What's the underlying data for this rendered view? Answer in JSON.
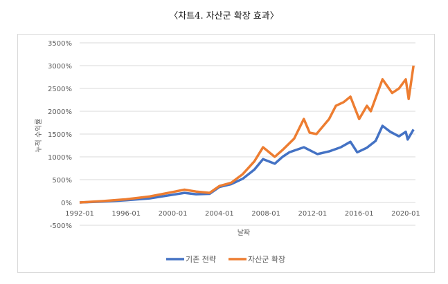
{
  "page_title": "〈차트4. 자산군 확장 효과〉",
  "chart_data": {
    "type": "line",
    "title": "",
    "xlabel": "날짜",
    "ylabel": "누적 수익률",
    "ylim": [
      -500,
      3500
    ],
    "yticks": [
      -500,
      0,
      500,
      1000,
      1500,
      2000,
      2500,
      3000,
      3500
    ],
    "ytick_labels": [
      "-500%",
      "0%",
      "500%",
      "1000%",
      "1500%",
      "2000%",
      "2500%",
      "3000%",
      "3500%"
    ],
    "xticks": [
      "1992-01",
      "1996-01",
      "2000-01",
      "2004-01",
      "2008-01",
      "2012-01",
      "2016-01",
      "2020-01"
    ],
    "xlim": [
      "1992-01",
      "2020-09"
    ],
    "grid": true,
    "legend": "bottom",
    "series": [
      {
        "name": "기존 전략",
        "color": "#4472C4",
        "points": [
          [
            "1992-01",
            0
          ],
          [
            "1994-01",
            20
          ],
          [
            "1996-01",
            50
          ],
          [
            "1998-01",
            90
          ],
          [
            "2000-01",
            170
          ],
          [
            "2001-01",
            210
          ],
          [
            "2002-01",
            180
          ],
          [
            "2003-03",
            190
          ],
          [
            "2004-01",
            340
          ],
          [
            "2005-01",
            400
          ],
          [
            "2006-01",
            520
          ],
          [
            "2007-01",
            720
          ],
          [
            "2007-10",
            950
          ],
          [
            "2008-10",
            850
          ],
          [
            "2009-06",
            1000
          ],
          [
            "2010-01",
            1100
          ],
          [
            "2011-04",
            1210
          ],
          [
            "2012-06",
            1060
          ],
          [
            "2013-06",
            1120
          ],
          [
            "2014-06",
            1210
          ],
          [
            "2015-04",
            1330
          ],
          [
            "2015-11",
            1100
          ],
          [
            "2016-09",
            1200
          ],
          [
            "2017-06",
            1350
          ],
          [
            "2018-01",
            1680
          ],
          [
            "2018-09",
            1550
          ],
          [
            "2019-06",
            1450
          ],
          [
            "2020-01",
            1550
          ],
          [
            "2020-03",
            1380
          ],
          [
            "2020-09",
            1600
          ]
        ]
      },
      {
        "name": "자산군 확장",
        "color": "#ED7D31",
        "points": [
          [
            "1992-01",
            0
          ],
          [
            "1994-01",
            30
          ],
          [
            "1996-01",
            70
          ],
          [
            "1998-01",
            130
          ],
          [
            "2000-01",
            230
          ],
          [
            "2001-01",
            280
          ],
          [
            "2002-01",
            240
          ],
          [
            "2003-03",
            210
          ],
          [
            "2004-01",
            360
          ],
          [
            "2005-01",
            430
          ],
          [
            "2006-01",
            620
          ],
          [
            "2007-01",
            900
          ],
          [
            "2007-10",
            1210
          ],
          [
            "2008-10",
            1000
          ],
          [
            "2009-06",
            1150
          ],
          [
            "2010-06",
            1400
          ],
          [
            "2011-04",
            1830
          ],
          [
            "2011-10",
            1530
          ],
          [
            "2012-05",
            1500
          ],
          [
            "2013-06",
            1830
          ],
          [
            "2014-01",
            2120
          ],
          [
            "2014-09",
            2200
          ],
          [
            "2015-04",
            2320
          ],
          [
            "2016-01",
            1830
          ],
          [
            "2016-09",
            2120
          ],
          [
            "2017-01",
            2000
          ],
          [
            "2018-01",
            2700
          ],
          [
            "2018-11",
            2400
          ],
          [
            "2019-06",
            2500
          ],
          [
            "2020-01",
            2700
          ],
          [
            "2020-04",
            2270
          ],
          [
            "2020-09",
            3000
          ]
        ]
      }
    ]
  }
}
